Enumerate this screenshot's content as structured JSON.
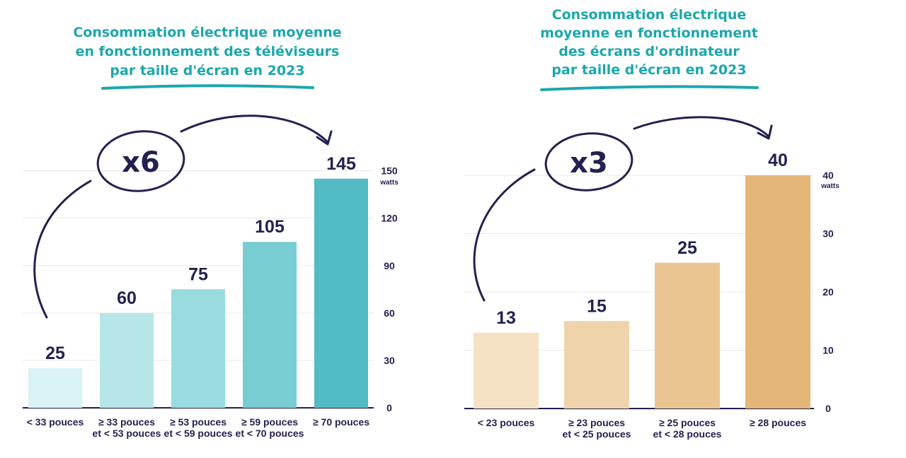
{
  "chart_data": [
    {
      "type": "bar",
      "title": [
        "Consommation électrique moyenne",
        "en fonctionnement des téléviseurs",
        "par taille d'écran en 2023"
      ],
      "categories": [
        [
          "< 33 pouces"
        ],
        [
          "≥ 33 pouces",
          "et < 53 pouces"
        ],
        [
          "≥ 53 pouces",
          "et < 59 pouces"
        ],
        [
          "≥ 59 pouces",
          "et < 70 pouces"
        ],
        [
          "≥ 70 pouces"
        ]
      ],
      "values": [
        25,
        60,
        75,
        105,
        145
      ],
      "colors": [
        "#d9f2f3",
        "#b7e6e8",
        "#99dbde",
        "#77cdd2",
        "#52bbc3"
      ],
      "yticks": [
        0,
        30,
        60,
        90,
        120,
        150
      ],
      "ylim": [
        0,
        150
      ],
      "unit": "watts",
      "multiplier": "x6",
      "title_color": "#1ba7ad"
    },
    {
      "type": "bar",
      "title": [
        "Consommation électrique",
        "moyenne en fonctionnement",
        "des écrans d'ordinateur",
        "par taille d'écran en 2023"
      ],
      "categories": [
        [
          "< 23 pouces"
        ],
        [
          "≥ 23 pouces",
          "et < 25 pouces"
        ],
        [
          "≥ 25 pouces",
          "et < 28 pouces"
        ],
        [
          "≥ 28 pouces"
        ]
      ],
      "values": [
        13,
        15,
        25,
        40
      ],
      "colors": [
        "#f5e2c4",
        "#efd4ab",
        "#eac491",
        "#e4b677"
      ],
      "yticks": [
        0,
        10,
        20,
        30,
        40
      ],
      "ylim": [
        0,
        40
      ],
      "unit": "watts",
      "multiplier": "x3",
      "title_color": "#1ba7ad"
    }
  ]
}
